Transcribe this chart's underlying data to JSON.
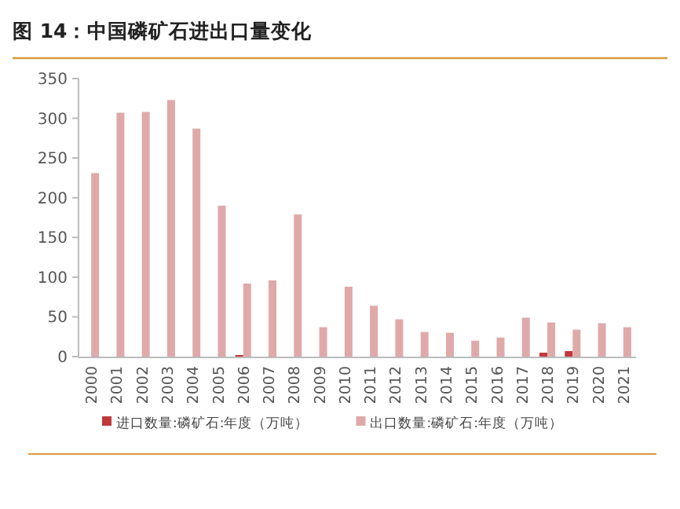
{
  "chart_data": {
    "type": "bar",
    "title": "图 14：中国磷矿石进出口量变化",
    "categories": [
      "2000",
      "2001",
      "2002",
      "2003",
      "2004",
      "2005",
      "2006",
      "2007",
      "2008",
      "2009",
      "2010",
      "2011",
      "2012",
      "2013",
      "2014",
      "2015",
      "2016",
      "2017",
      "2018",
      "2019",
      "2020",
      "2021"
    ],
    "series": [
      {
        "name": "进口数量:磷矿石:年度（万吨）",
        "color": "#c0393b",
        "values": [
          null,
          null,
          null,
          null,
          null,
          null,
          2,
          null,
          null,
          null,
          null,
          null,
          null,
          null,
          null,
          null,
          null,
          null,
          5,
          7,
          null,
          null
        ]
      },
      {
        "name": "出口数量:磷矿石:年度（万吨）",
        "color": "#dfa9aa",
        "values": [
          231,
          307,
          308,
          323,
          287,
          190,
          92,
          96,
          179,
          37,
          88,
          64,
          47,
          31,
          30,
          20,
          24,
          49,
          43,
          34,
          42,
          37
        ]
      }
    ],
    "ylim": [
      0,
      350
    ],
    "yticks": [
      0,
      50,
      100,
      150,
      200,
      250,
      300,
      350
    ],
    "grid": false,
    "legend": "bottom"
  }
}
